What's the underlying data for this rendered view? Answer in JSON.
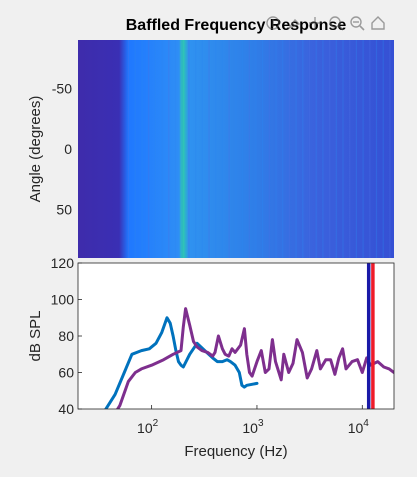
{
  "chart_data": [
    {
      "type": "heatmap",
      "title": "Baffled Frequency Response",
      "ylabel": "Angle (degrees)",
      "yticks": [
        "-50",
        "0",
        "50"
      ],
      "ylim": [
        -90,
        90
      ],
      "grid": false
    },
    {
      "type": "line",
      "title": "",
      "xlabel": "Frequency (Hz)",
      "ylabel": "dB SPL",
      "xscale": "log",
      "xlim": [
        20,
        20000
      ],
      "ylim": [
        40,
        120
      ],
      "xticks": [
        "10",
        "10",
        "10"
      ],
      "xtick_exponents": [
        "2",
        "3",
        "4"
      ],
      "yticks": [
        "40",
        "60",
        "80",
        "100",
        "120"
      ],
      "grid": false,
      "series": [
        {
          "color": "#0072bd",
          "x": [
            20,
            35,
            45,
            55,
            65,
            80,
            95,
            110,
            125,
            140,
            150,
            160,
            170,
            180,
            190,
            200,
            230,
            270,
            320,
            380,
            420,
            470,
            520,
            560,
            620,
            680,
            720,
            760,
            800,
            1000
          ],
          "y": [
            30,
            38,
            48,
            60,
            70,
            72,
            73,
            76,
            82,
            90,
            87,
            80,
            72,
            66,
            64,
            63,
            70,
            76,
            72,
            68,
            66,
            66,
            67,
            66,
            64,
            60,
            53,
            52,
            53,
            54
          ]
        },
        {
          "color": "#7e2f8e",
          "x": [
            20,
            40,
            50,
            60,
            70,
            80,
            100,
            130,
            160,
            190,
            200,
            210,
            230,
            250,
            270,
            300,
            340,
            380,
            400,
            430,
            470,
            500,
            540,
            580,
            620,
            700,
            760,
            800,
            850,
            900,
            1000,
            1100,
            1200,
            1300,
            1400,
            1500,
            1700,
            1800,
            2000,
            2200,
            2400,
            2700,
            3000,
            3300,
            3700,
            4000,
            4500,
            5000,
            5500,
            6000,
            6500,
            7000,
            8000,
            9000,
            10000,
            11000,
            12000,
            14000,
            16000,
            18000,
            20000
          ],
          "y": [
            30,
            33,
            42,
            55,
            60,
            62,
            64,
            67,
            70,
            72,
            85,
            95,
            86,
            77,
            74,
            72,
            71,
            69,
            71,
            80,
            73,
            70,
            69,
            73,
            71,
            75,
            84,
            70,
            60,
            58,
            66,
            72,
            60,
            62,
            78,
            66,
            56,
            70,
            60,
            65,
            78,
            71,
            57,
            62,
            72,
            62,
            67,
            67,
            59,
            68,
            73,
            62,
            66,
            67,
            60,
            68,
            64,
            66,
            63,
            62,
            60
          ]
        },
        {
          "color": "#1a1aa8",
          "x": [
            11500,
            11500
          ],
          "y": [
            40,
            120
          ]
        },
        {
          "color": "#ee1b2a",
          "x": [
            12600,
            12600
          ],
          "y": [
            40,
            120
          ]
        }
      ]
    }
  ]
}
